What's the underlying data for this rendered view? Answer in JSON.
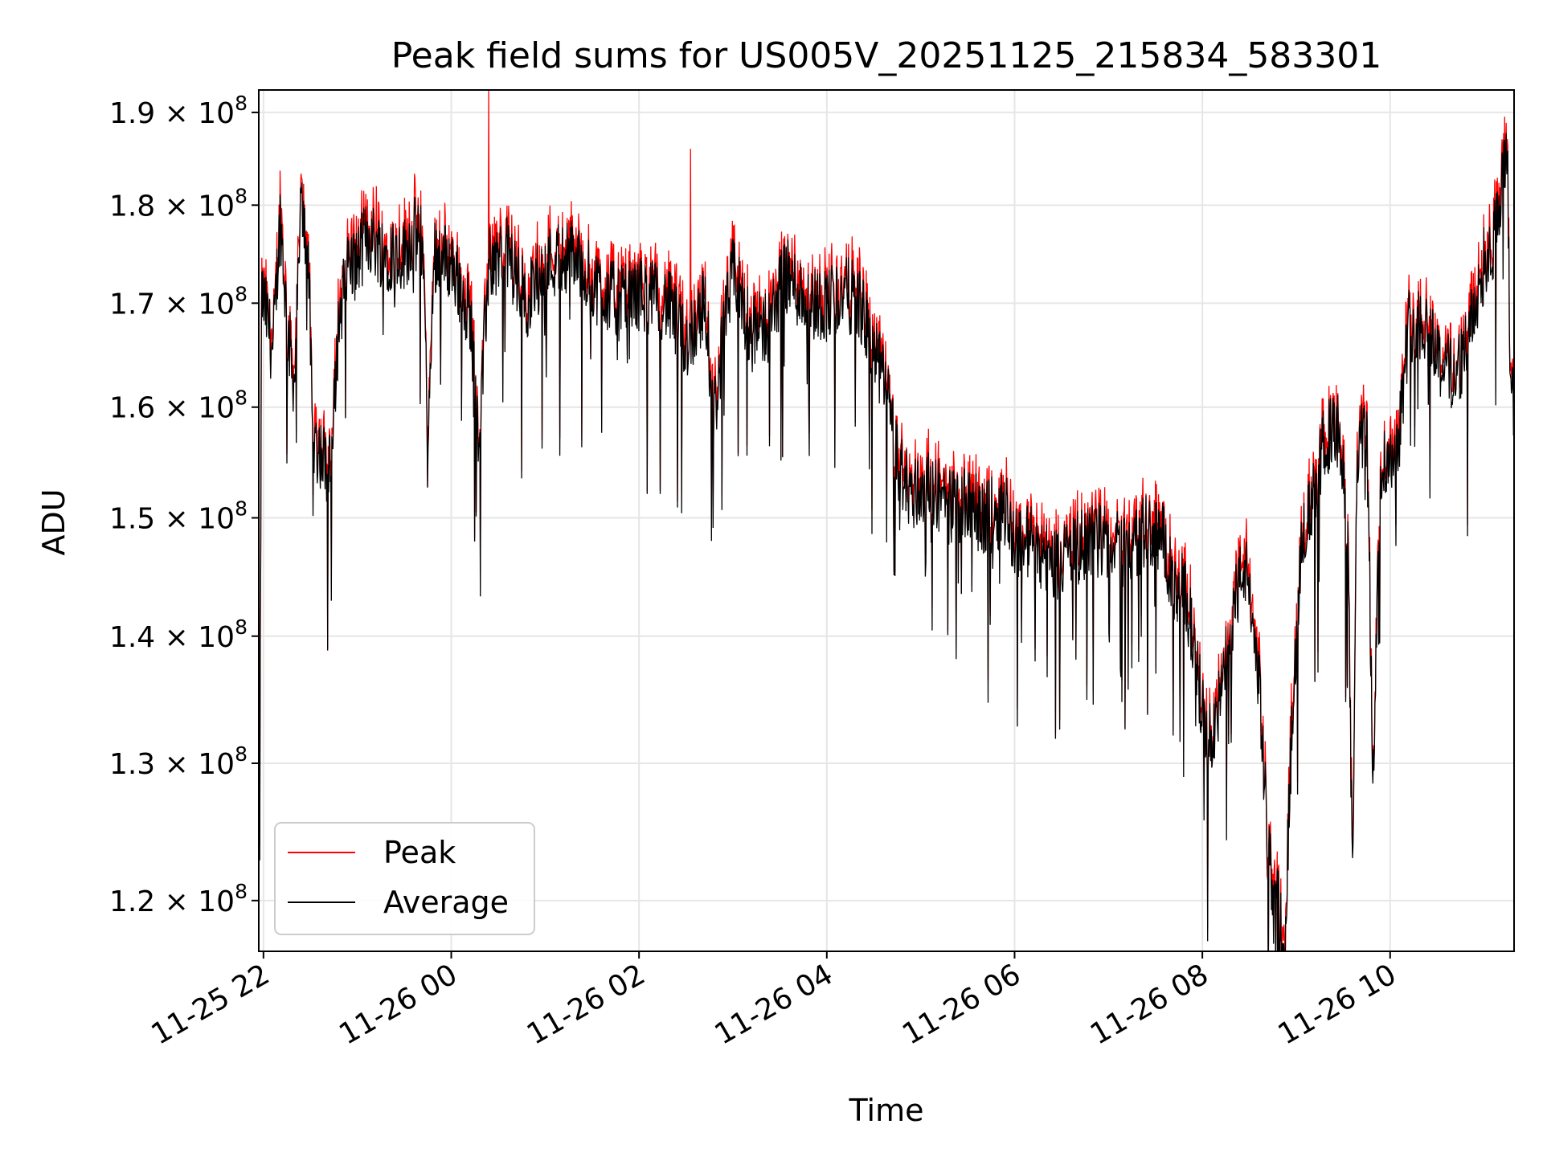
{
  "chart_data": {
    "type": "line",
    "title": "Peak field sums for US005V_20251125_215834_583301",
    "xlabel": "Time",
    "ylabel": "ADU",
    "yscale": "log",
    "xlim_hours": [
      21.95,
      35.32
    ],
    "ylim": [
      116500000,
      192500000
    ],
    "grid": true,
    "legend_location": "lower-left",
    "x_ticks": [
      {
        "hour": 22,
        "label": "11-25 22"
      },
      {
        "hour": 24,
        "label": "11-26 00"
      },
      {
        "hour": 26,
        "label": "11-26 02"
      },
      {
        "hour": 28,
        "label": "11-26 04"
      },
      {
        "hour": 30,
        "label": "11-26 06"
      },
      {
        "hour": 32,
        "label": "11-26 08"
      },
      {
        "hour": 34,
        "label": "11-26 10"
      }
    ],
    "y_ticks": [
      {
        "value": 120000000,
        "mantissa": "1.2",
        "base": "10",
        "exponent": "8"
      },
      {
        "value": 130000000,
        "mantissa": "1.3",
        "base": "10",
        "exponent": "8"
      },
      {
        "value": 140000000,
        "mantissa": "1.4",
        "base": "10",
        "exponent": "8"
      },
      {
        "value": 150000000,
        "mantissa": "1.5",
        "base": "10",
        "exponent": "8"
      },
      {
        "value": 160000000,
        "mantissa": "1.6",
        "base": "10",
        "exponent": "8"
      },
      {
        "value": 170000000,
        "mantissa": "1.7",
        "base": "10",
        "exponent": "8"
      },
      {
        "value": 180000000,
        "mantissa": "1.8",
        "base": "10",
        "exponent": "8"
      },
      {
        "value": 190000000,
        "mantissa": "1.9",
        "base": "10",
        "exponent": "8"
      }
    ],
    "series": [
      {
        "name": "Peak",
        "color": "#ff0000"
      },
      {
        "name": "Average",
        "color": "#000000"
      }
    ],
    "average_anchors": [
      [
        21.96,
        122000000
      ],
      [
        21.98,
        171000000
      ],
      [
        22.05,
        168000000
      ],
      [
        22.1,
        165000000
      ],
      [
        22.18,
        179000000
      ],
      [
        22.25,
        168000000
      ],
      [
        22.33,
        162000000
      ],
      [
        22.4,
        180000000
      ],
      [
        22.48,
        175000000
      ],
      [
        22.52,
        157000000
      ],
      [
        22.6,
        156000000
      ],
      [
        22.72,
        154000000
      ],
      [
        22.8,
        168000000
      ],
      [
        22.9,
        174000000
      ],
      [
        23.0,
        174000000
      ],
      [
        23.1,
        177000000
      ],
      [
        23.3,
        175000000
      ],
      [
        23.5,
        175000000
      ],
      [
        23.6,
        177000000
      ],
      [
        23.7,
        176000000
      ],
      [
        23.75,
        155000000
      ],
      [
        23.82,
        175000000
      ],
      [
        24.0,
        174000000
      ],
      [
        24.2,
        169000000
      ],
      [
        24.3,
        157000000
      ],
      [
        24.4,
        174000000
      ],
      [
        24.6,
        175000000
      ],
      [
        24.8,
        170000000
      ],
      [
        25.0,
        174000000
      ],
      [
        25.3,
        175000000
      ],
      [
        25.5,
        172000000
      ],
      [
        25.8,
        170000000
      ],
      [
        26.0,
        171000000
      ],
      [
        26.3,
        170000000
      ],
      [
        26.5,
        166000000
      ],
      [
        26.7,
        170000000
      ],
      [
        26.8,
        159000000
      ],
      [
        26.9,
        167000000
      ],
      [
        27.0,
        173000000
      ],
      [
        27.2,
        167000000
      ],
      [
        27.4,
        168000000
      ],
      [
        27.55,
        173000000
      ],
      [
        27.8,
        170000000
      ],
      [
        28.0,
        170000000
      ],
      [
        28.2,
        171000000
      ],
      [
        28.35,
        170000000
      ],
      [
        28.5,
        165000000
      ],
      [
        28.6,
        163000000
      ],
      [
        28.68,
        159000000
      ],
      [
        28.75,
        155000000
      ],
      [
        28.9,
        152000000
      ],
      [
        29.1,
        153000000
      ],
      [
        29.3,
        151000000
      ],
      [
        29.5,
        151000000
      ],
      [
        29.7,
        150000000
      ],
      [
        29.9,
        151000000
      ],
      [
        30.0,
        148000000
      ],
      [
        30.2,
        148000000
      ],
      [
        30.4,
        146000000
      ],
      [
        30.6,
        147000000
      ],
      [
        30.8,
        148000000
      ],
      [
        31.0,
        148000000
      ],
      [
        31.2,
        147000000
      ],
      [
        31.4,
        149000000
      ],
      [
        31.6,
        148000000
      ],
      [
        31.7,
        143000000
      ],
      [
        31.8,
        144000000
      ],
      [
        31.92,
        139000000
      ],
      [
        32.05,
        131000000
      ],
      [
        32.2,
        135000000
      ],
      [
        32.35,
        143000000
      ],
      [
        32.45,
        146000000
      ],
      [
        32.6,
        137000000
      ],
      [
        32.7,
        123000000
      ],
      [
        32.8,
        120000000
      ],
      [
        32.88,
        118000000
      ],
      [
        32.95,
        132000000
      ],
      [
        33.05,
        148000000
      ],
      [
        33.2,
        152000000
      ],
      [
        33.3,
        157000000
      ],
      [
        33.45,
        158000000
      ],
      [
        33.55,
        148000000
      ],
      [
        33.6,
        120000000
      ],
      [
        33.65,
        156000000
      ],
      [
        33.75,
        158000000
      ],
      [
        33.82,
        128000000
      ],
      [
        33.9,
        155000000
      ],
      [
        34.0,
        155000000
      ],
      [
        34.1,
        158000000
      ],
      [
        34.2,
        168000000
      ],
      [
        34.4,
        168000000
      ],
      [
        34.55,
        164000000
      ],
      [
        34.7,
        163000000
      ],
      [
        34.85,
        167000000
      ],
      [
        35.0,
        174000000
      ],
      [
        35.1,
        176000000
      ],
      [
        35.2,
        183000000
      ],
      [
        35.25,
        185000000
      ],
      [
        35.28,
        160000000
      ],
      [
        35.32,
        161000000
      ]
    ],
    "peak_spikes": [
      [
        23.2,
        182000000
      ],
      [
        24.4,
        192500000
      ],
      [
        26.55,
        186000000
      ]
    ]
  }
}
